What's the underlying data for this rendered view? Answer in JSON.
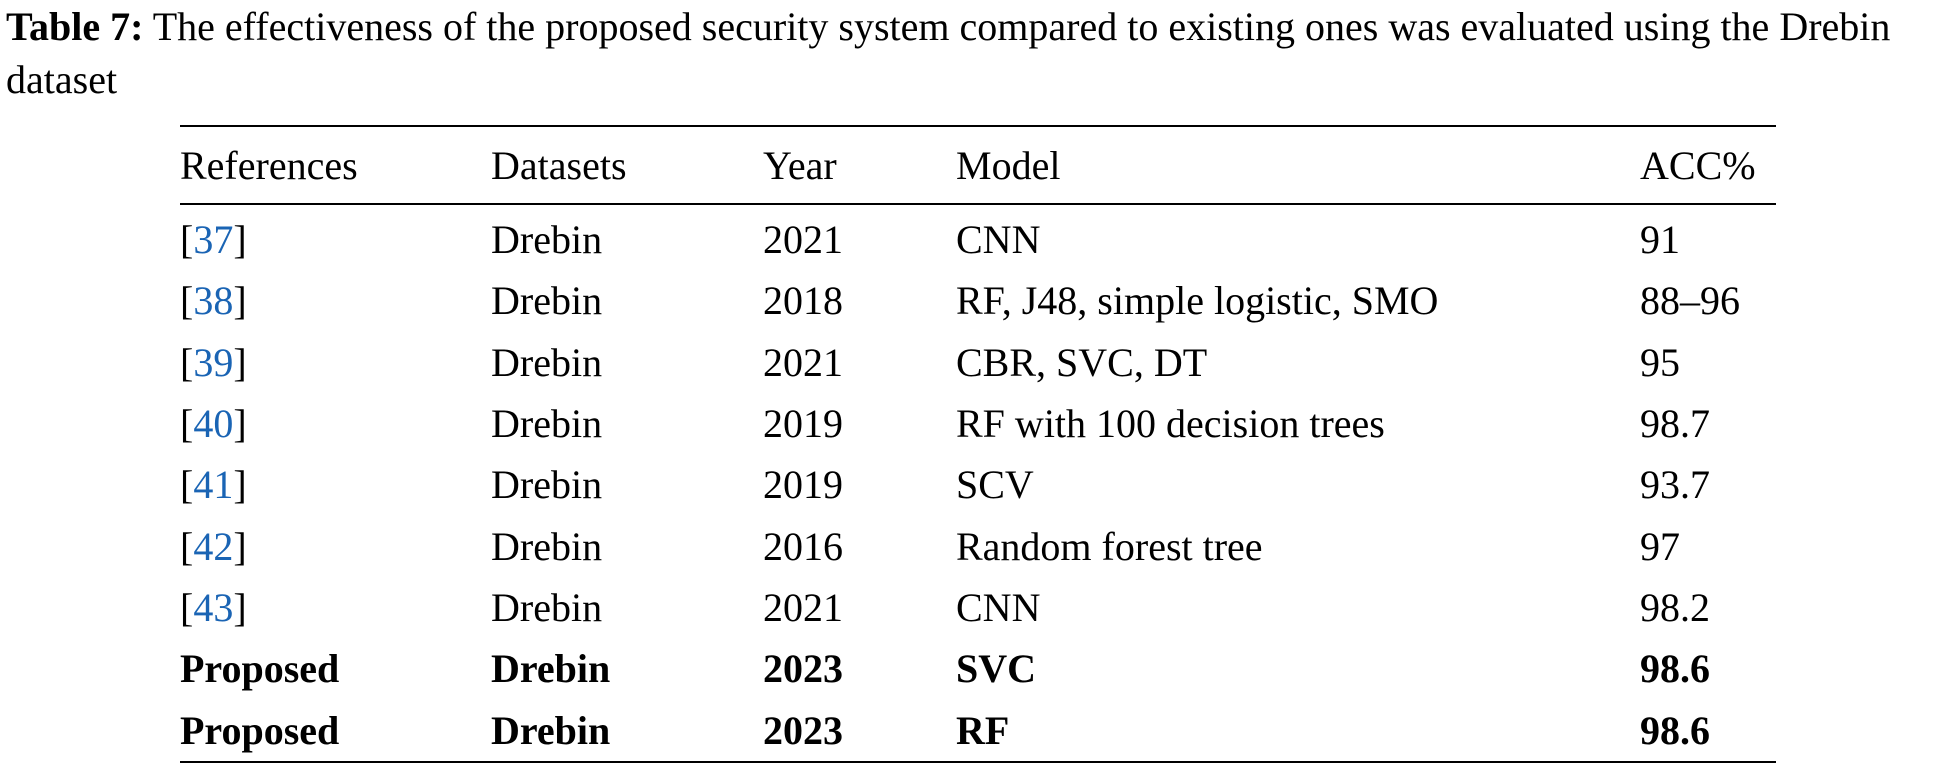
{
  "caption": {
    "label": "Table 7:",
    "text": " The effectiveness of the proposed security system compared to existing ones was evaluated using the Drebin dataset"
  },
  "table": {
    "headers": [
      "References",
      "Datasets",
      "Year",
      "Model",
      "ACC%"
    ],
    "rows": [
      {
        "ref": "37",
        "dataset": "Drebin",
        "year": "2021",
        "model": "CNN",
        "acc": "91"
      },
      {
        "ref": "38",
        "dataset": "Drebin",
        "year": "2018",
        "model": "RF, J48, simple logistic, SMO",
        "acc": "88–96"
      },
      {
        "ref": "39",
        "dataset": "Drebin",
        "year": "2021",
        "model": "CBR, SVC, DT",
        "acc": "95"
      },
      {
        "ref": "40",
        "dataset": "Drebin",
        "year": "2019",
        "model": "RF with 100 decision trees",
        "acc": "98.7"
      },
      {
        "ref": "41",
        "dataset": "Drebin",
        "year": "2019",
        "model": "SCV",
        "acc": "93.7"
      },
      {
        "ref": "42",
        "dataset": "Drebin",
        "year": "2016",
        "model": "Random forest tree",
        "acc": "97"
      },
      {
        "ref": "43",
        "dataset": "Drebin",
        "year": "2021",
        "model": "CNN",
        "acc": "98.2"
      }
    ],
    "proposed_rows": [
      {
        "ref": "Proposed",
        "dataset": "Drebin",
        "year": "2023",
        "model": "SVC",
        "acc": "98.6"
      },
      {
        "ref": "Proposed",
        "dataset": "Drebin",
        "year": "2023",
        "model": "RF",
        "acc": "98.6"
      }
    ],
    "bracket_open": "[",
    "bracket_close": "]"
  },
  "colors": {
    "link": "#1a64b4",
    "text": "#000000"
  }
}
